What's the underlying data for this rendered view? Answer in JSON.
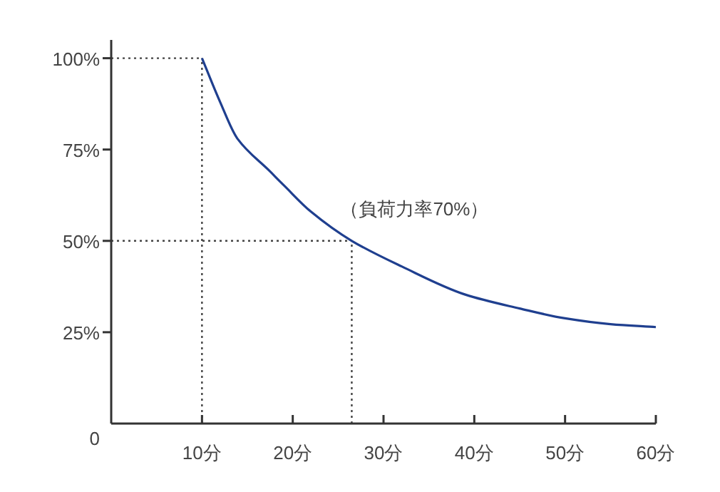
{
  "chart_data": {
    "type": "line",
    "xlim": [
      0,
      60
    ],
    "ylim": [
      0,
      105
    ],
    "xticks": [
      {
        "value": 10,
        "label": "10分"
      },
      {
        "value": 20,
        "label": "20分"
      },
      {
        "value": 30,
        "label": "30分"
      },
      {
        "value": 40,
        "label": "40分"
      },
      {
        "value": 50,
        "label": "50分"
      },
      {
        "value": 60,
        "label": "60分"
      }
    ],
    "yticks": [
      {
        "value": 0,
        "label": "0"
      },
      {
        "value": 25,
        "label": "25%"
      },
      {
        "value": 50,
        "label": "50%"
      },
      {
        "value": 75,
        "label": "75%"
      },
      {
        "value": 100,
        "label": "100%"
      }
    ],
    "grid": false,
    "marker": "none",
    "line_style": "solid",
    "series": [
      {
        "color": "#1f3f8f",
        "x": [
          10,
          12,
          13.9,
          17.5,
          19.1,
          22,
          26.5,
          32,
          39,
          45,
          50,
          55,
          60
        ],
        "values": [
          100,
          88,
          78,
          69,
          65,
          58,
          50,
          43,
          35.3,
          31.5,
          28.8,
          27.2,
          26.4
        ]
      }
    ],
    "ref_lines": [
      {
        "axis": "x",
        "value": 10,
        "line_style": "dotted",
        "color": "#444444"
      },
      {
        "axis": "y",
        "value": 100,
        "line_style": "dotted",
        "color": "#444444"
      },
      {
        "axis": "y",
        "value": 50,
        "line_style": "dotted",
        "color": "#444444"
      },
      {
        "axis": "x",
        "value": 26.5,
        "line_style": "dotted",
        "color": "#444444"
      }
    ],
    "annotations": [
      "（負荷力率70%）"
    ]
  }
}
